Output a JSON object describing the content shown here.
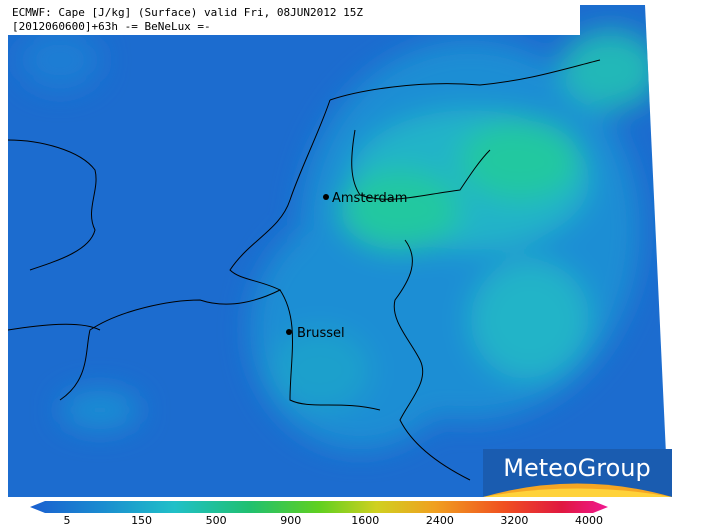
{
  "header": {
    "line1": "ECMWF: Cape [J/kg] (Surface) valid Fri, 08JUN2012 15Z",
    "line2": "[2012060600]+63h -= BeNeLux =-"
  },
  "cities": [
    {
      "label": "Amsterdam"
    },
    {
      "label": "Brussel"
    }
  ],
  "colorbar": {
    "labels": [
      "5",
      "150",
      "500",
      "900",
      "1600",
      "2400",
      "3200",
      "4000"
    ]
  },
  "logo": {
    "text": "MeteoGroup"
  }
}
